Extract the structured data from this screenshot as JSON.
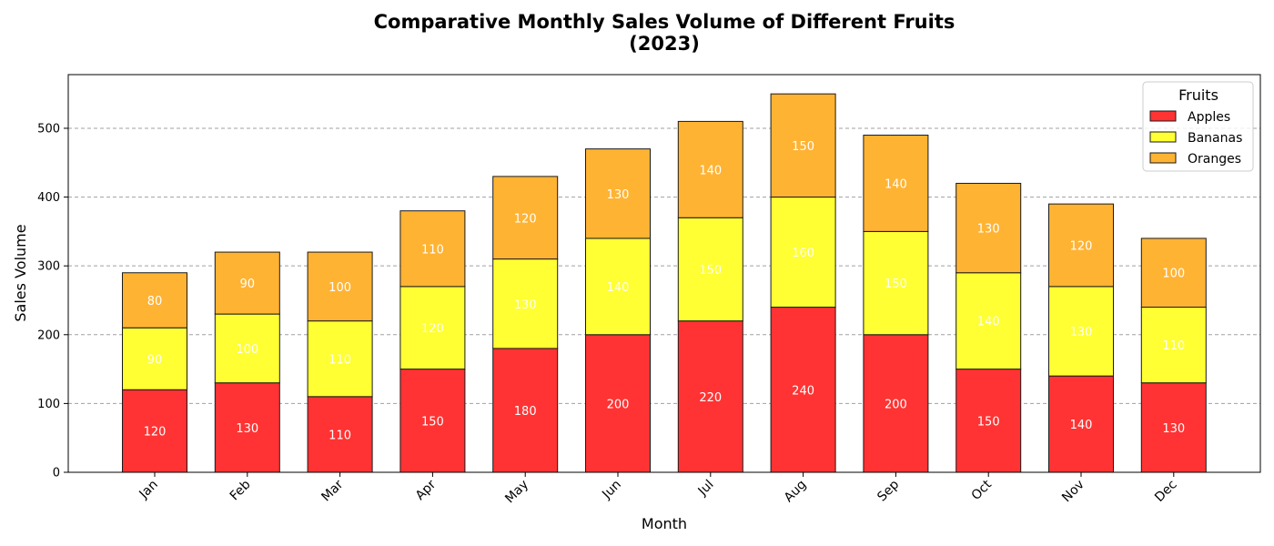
{
  "chart_data": {
    "type": "bar",
    "stacked": true,
    "title": "Comparative Monthly Sales Volume of Different Fruits",
    "subtitle": "(2023)",
    "xlabel": "Month",
    "ylabel": "Sales Volume",
    "categories": [
      "Jan",
      "Feb",
      "Mar",
      "Apr",
      "May",
      "Jun",
      "Jul",
      "Aug",
      "Sep",
      "Oct",
      "Nov",
      "Dec"
    ],
    "series": [
      {
        "name": "Apples",
        "color": "#ff3333",
        "values": [
          120,
          130,
          110,
          150,
          180,
          200,
          220,
          240,
          200,
          150,
          140,
          130
        ]
      },
      {
        "name": "Bananas",
        "color": "#ffff33",
        "values": [
          90,
          100,
          110,
          120,
          130,
          140,
          150,
          160,
          150,
          140,
          130,
          110
        ]
      },
      {
        "name": "Oranges",
        "color": "#ffb333",
        "values": [
          80,
          90,
          100,
          110,
          120,
          130,
          140,
          150,
          140,
          130,
          120,
          100
        ]
      }
    ],
    "ylim": [
      0,
      578
    ],
    "yticks": [
      0,
      100,
      200,
      300,
      400,
      500
    ],
    "grid": "y-dashed",
    "legend_title": "Fruits",
    "legend_position": "top-right"
  }
}
